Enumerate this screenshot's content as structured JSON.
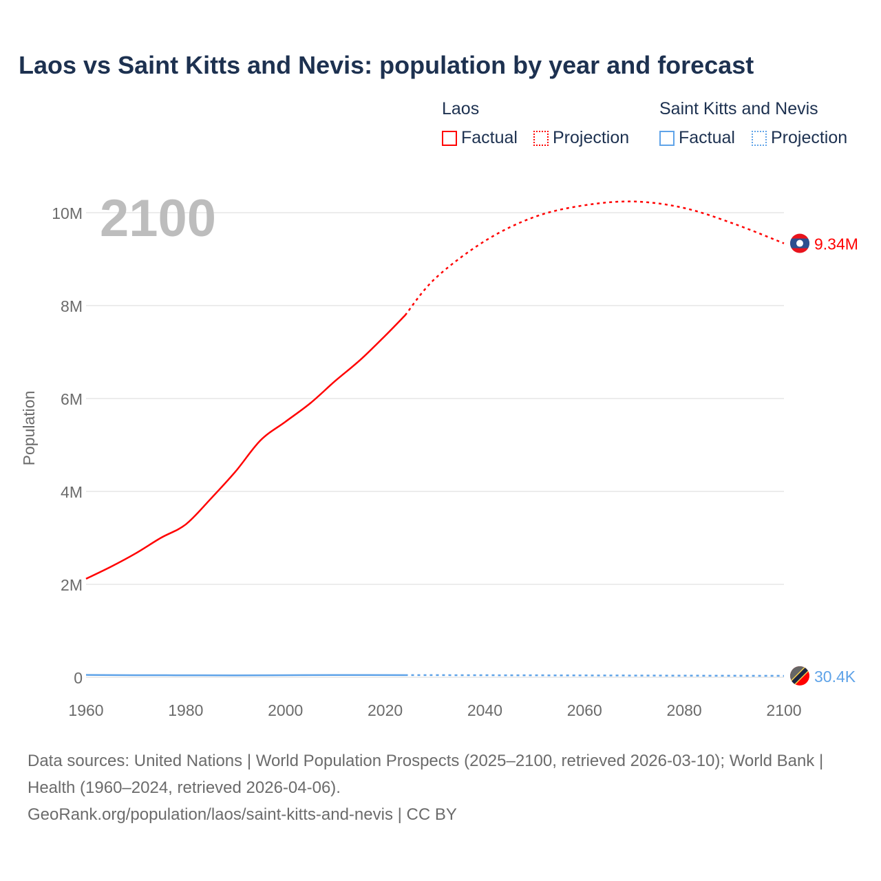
{
  "chart_data": {
    "type": "line",
    "title": "Laos vs Saint Kitts and Nevis: population by year and forecast",
    "xlabel": "",
    "ylabel": "Population",
    "xlim": [
      1960,
      2100
    ],
    "ylim": [
      0,
      10500000
    ],
    "x_ticks": [
      1960,
      1980,
      2000,
      2020,
      2040,
      2060,
      2080,
      2100
    ],
    "x_tick_labels": [
      "1960",
      "1980",
      "2000",
      "2020",
      "2040",
      "2060",
      "2080",
      "2100"
    ],
    "y_ticks": [
      0,
      2000000,
      4000000,
      6000000,
      8000000,
      10000000
    ],
    "y_tick_labels": [
      "0",
      "2M",
      "4M",
      "6M",
      "8M",
      "10M"
    ],
    "grid": true,
    "year_watermark": "2100",
    "legend_position": "top-right",
    "series": [
      {
        "name": "Laos",
        "color": "#ff0000",
        "end_label": "9.34M",
        "factual": {
          "label": "Factual",
          "x": [
            1960,
            1965,
            1970,
            1975,
            1980,
            1985,
            1990,
            1995,
            2000,
            2005,
            2010,
            2015,
            2020,
            2024
          ],
          "y": [
            2120000,
            2380000,
            2670000,
            3000000,
            3290000,
            3840000,
            4430000,
            5100000,
            5500000,
            5900000,
            6380000,
            6830000,
            7350000,
            7790000
          ]
        },
        "projection": {
          "label": "Projection",
          "x": [
            2024,
            2030,
            2040,
            2050,
            2060,
            2070,
            2080,
            2090,
            2100
          ],
          "y": [
            7790000,
            8580000,
            9390000,
            9910000,
            10160000,
            10240000,
            10100000,
            9760000,
            9340000
          ]
        }
      },
      {
        "name": "Saint Kitts and Nevis",
        "color": "#5fa3e8",
        "end_label": "30.4K",
        "factual": {
          "label": "Factual",
          "x": [
            1960,
            1970,
            1980,
            1990,
            2000,
            2010,
            2024
          ],
          "y": [
            51000,
            45000,
            43000,
            41000,
            45000,
            48000,
            47000
          ]
        },
        "projection": {
          "label": "Projection",
          "x": [
            2024,
            2040,
            2060,
            2080,
            2100
          ],
          "y": [
            47000,
            44000,
            40000,
            35000,
            30400
          ]
        }
      }
    ]
  },
  "legend": {
    "groups": [
      {
        "name": "Laos",
        "factual": "Factual",
        "projection": "Projection"
      },
      {
        "name": "Saint Kitts and Nevis",
        "factual": "Factual",
        "projection": "Projection"
      }
    ]
  },
  "footer": {
    "sources": "Data sources: United Nations | World Population Prospects (2025–2100, retrieved 2026-03-10); World Bank | Health (1960–2024, retrieved 2026-04-06).",
    "link": "GeoRank.org/population/laos/saint-kitts-and-nevis | CC BY"
  }
}
